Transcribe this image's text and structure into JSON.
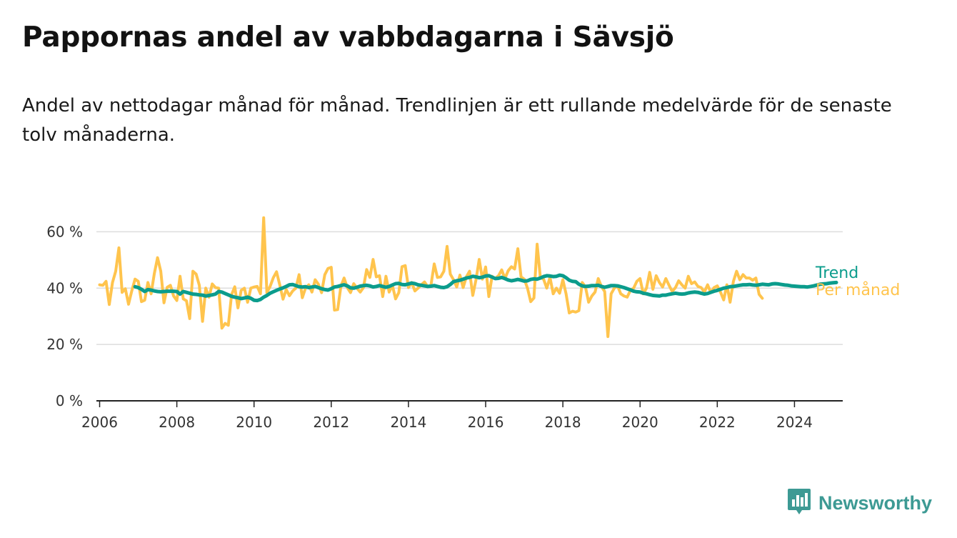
{
  "title": "Pappornas andel av vabbdagarna i Sävsjö",
  "subtitle": "Andel av nettodagar månad för månad. Trendlinjen är ett rullande medelvärde för de senaste tolv månaderna.",
  "brand": {
    "name": "Newsworthy",
    "color": "#3d9a94"
  },
  "colors": {
    "monthly": "#ffc44d",
    "trend": "#0b9c8c",
    "grid": "#dddddd",
    "axis": "#222222"
  },
  "chart_data": {
    "type": "line",
    "ylim": [
      0,
      70
    ],
    "yticks": [
      0,
      20,
      40,
      60
    ],
    "ytick_labels": [
      "0 %",
      "20 %",
      "40 %",
      "60 %"
    ],
    "xlim": [
      "2005-12",
      "2025-04"
    ],
    "xticks": [
      "2006",
      "2008",
      "2010",
      "2012",
      "2014",
      "2016",
      "2018",
      "2020",
      "2022",
      "2024"
    ],
    "grid": true,
    "series": [
      {
        "name": "Trend",
        "start": "2006-12",
        "values": [
          40.5,
          40.2,
          39.6,
          38.8,
          39.5,
          39.3,
          39.0,
          38.8,
          38.7,
          38.8,
          38.9,
          38.9,
          38.9,
          38.8,
          37.9,
          38.8,
          38.5,
          38.2,
          37.9,
          37.8,
          37.6,
          37.5,
          37.2,
          37.4,
          37.6,
          37.9,
          38.8,
          38.6,
          38.1,
          37.6,
          37.1,
          36.8,
          36.6,
          36.3,
          36.5,
          36.8,
          36.4,
          35.7,
          35.6,
          36.0,
          36.8,
          37.4,
          38.2,
          38.7,
          39.2,
          39.7,
          40.1,
          40.6,
          41.2,
          41.3,
          40.9,
          40.5,
          40.4,
          40.5,
          40.2,
          40.4,
          40.6,
          40.2,
          39.8,
          39.5,
          39.3,
          39.8,
          40.4,
          40.6,
          40.9,
          41.2,
          40.8,
          40.1,
          40.0,
          40.3,
          40.7,
          40.9,
          41.0,
          40.8,
          40.4,
          40.6,
          40.9,
          40.6,
          40.3,
          40.6,
          41.1,
          41.6,
          41.7,
          41.3,
          41.2,
          41.5,
          41.8,
          41.6,
          41.2,
          41.0,
          40.8,
          40.6,
          40.7,
          40.9,
          40.6,
          40.3,
          40.2,
          40.5,
          41.3,
          42.3,
          42.6,
          42.8,
          43.2,
          43.6,
          43.8,
          44.2,
          44.0,
          43.7,
          43.9,
          44.3,
          44.4,
          43.9,
          43.4,
          43.5,
          43.8,
          43.4,
          42.9,
          42.6,
          42.8,
          43.1,
          42.8,
          42.5,
          42.6,
          43.1,
          43.3,
          43.2,
          43.6,
          44.1,
          44.4,
          44.3,
          44.1,
          44.2,
          44.6,
          44.4,
          43.7,
          42.8,
          42.4,
          42.3,
          41.4,
          40.8,
          40.6,
          40.7,
          40.9,
          40.9,
          41.0,
          40.6,
          40.3,
          40.6,
          40.9,
          40.9,
          40.8,
          40.5,
          40.2,
          39.8,
          39.4,
          38.9,
          38.7,
          38.6,
          38.2,
          38.0,
          37.7,
          37.4,
          37.3,
          37.2,
          37.5,
          37.5,
          37.8,
          38.0,
          38.2,
          38.0,
          37.9,
          38.0,
          38.3,
          38.5,
          38.6,
          38.5,
          38.2,
          37.9,
          38.1,
          38.5,
          38.9,
          39.2,
          39.6,
          40.0,
          40.2,
          40.5,
          40.6,
          40.8,
          41.0,
          41.2,
          41.2,
          41.3,
          41.1,
          41.0,
          41.2,
          41.4,
          41.3,
          41.2,
          41.5,
          41.6,
          41.5,
          41.3,
          41.1,
          41.0,
          40.8,
          40.7,
          40.6,
          40.5,
          40.5,
          40.4,
          40.6,
          40.8,
          41.1,
          41.4,
          41.5,
          41.6,
          41.8,
          41.9,
          42.0
        ]
      },
      {
        "name": "Per månad",
        "start": "2006-01",
        "values": [
          41.2,
          41.0,
          42.4,
          34.2,
          42.0,
          46.0,
          54.3,
          38.5,
          39.8,
          34.3,
          39.0,
          43.2,
          42.4,
          35.2,
          35.7,
          42.0,
          38.0,
          45.2,
          50.8,
          46.0,
          34.8,
          40.3,
          41.0,
          37.2,
          35.6,
          44.2,
          36.2,
          35.5,
          29.2,
          46.0,
          45.0,
          41.0,
          28.2,
          40.0,
          36.8,
          41.5,
          40.2,
          40.0,
          25.8,
          27.5,
          26.8,
          37.6,
          40.5,
          33.0,
          39.2,
          40.0,
          35.0,
          40.0,
          40.4,
          40.6,
          38.0,
          65.0,
          38.4,
          40.6,
          43.7,
          45.8,
          41.2,
          36.1,
          39.5,
          37.3,
          39.0,
          40.0,
          44.8,
          36.6,
          40.0,
          41.2,
          38.6,
          43.0,
          41.4,
          38.4,
          44.8,
          47.0,
          47.4,
          32.2,
          32.4,
          40.6,
          43.6,
          40.2,
          38.4,
          41.6,
          40.0,
          38.6,
          40.2,
          46.6,
          43.8,
          50.2,
          44.0,
          44.4,
          37.0,
          44.2,
          38.6,
          41.0,
          36.2,
          38.4,
          47.6,
          48.0,
          40.2,
          42.0,
          39.0,
          40.0,
          41.2,
          42.2,
          40.5,
          41.0,
          48.6,
          43.8,
          44.0,
          46.0,
          54.8,
          45.0,
          43.0,
          40.4,
          44.6,
          40.2,
          44.0,
          46.0,
          37.4,
          43.0,
          50.2,
          43.2,
          47.5,
          37.0,
          44.2,
          43.4,
          44.4,
          46.5,
          43.4,
          46.2,
          47.6,
          46.8,
          54.0,
          44.0,
          43.2,
          40.0,
          35.2,
          36.5,
          55.6,
          43.8,
          43.2,
          40.0,
          43.8,
          38.0,
          40.0,
          38.2,
          43.0,
          38.0,
          31.2,
          31.8,
          31.5,
          32.0,
          42.0,
          40.5,
          35.0,
          37.2,
          38.6,
          43.4,
          40.5,
          38.8,
          22.8,
          38.0,
          40.0,
          40.8,
          38.0,
          37.2,
          36.8,
          39.2,
          40.0,
          42.4,
          43.4,
          38.0,
          40.0,
          45.6,
          39.6,
          44.4,
          42.0,
          40.4,
          43.4,
          41.0,
          38.8,
          40.2,
          42.6,
          41.2,
          40.0,
          44.2,
          41.6,
          42.2,
          40.6,
          40.2,
          38.6,
          41.2,
          38.4,
          40.2,
          40.8,
          38.6,
          35.8,
          41.2,
          35.0,
          42.4,
          46.0,
          43.0,
          44.8,
          43.6,
          43.6,
          42.8,
          43.6,
          37.8,
          36.4
        ]
      }
    ]
  }
}
